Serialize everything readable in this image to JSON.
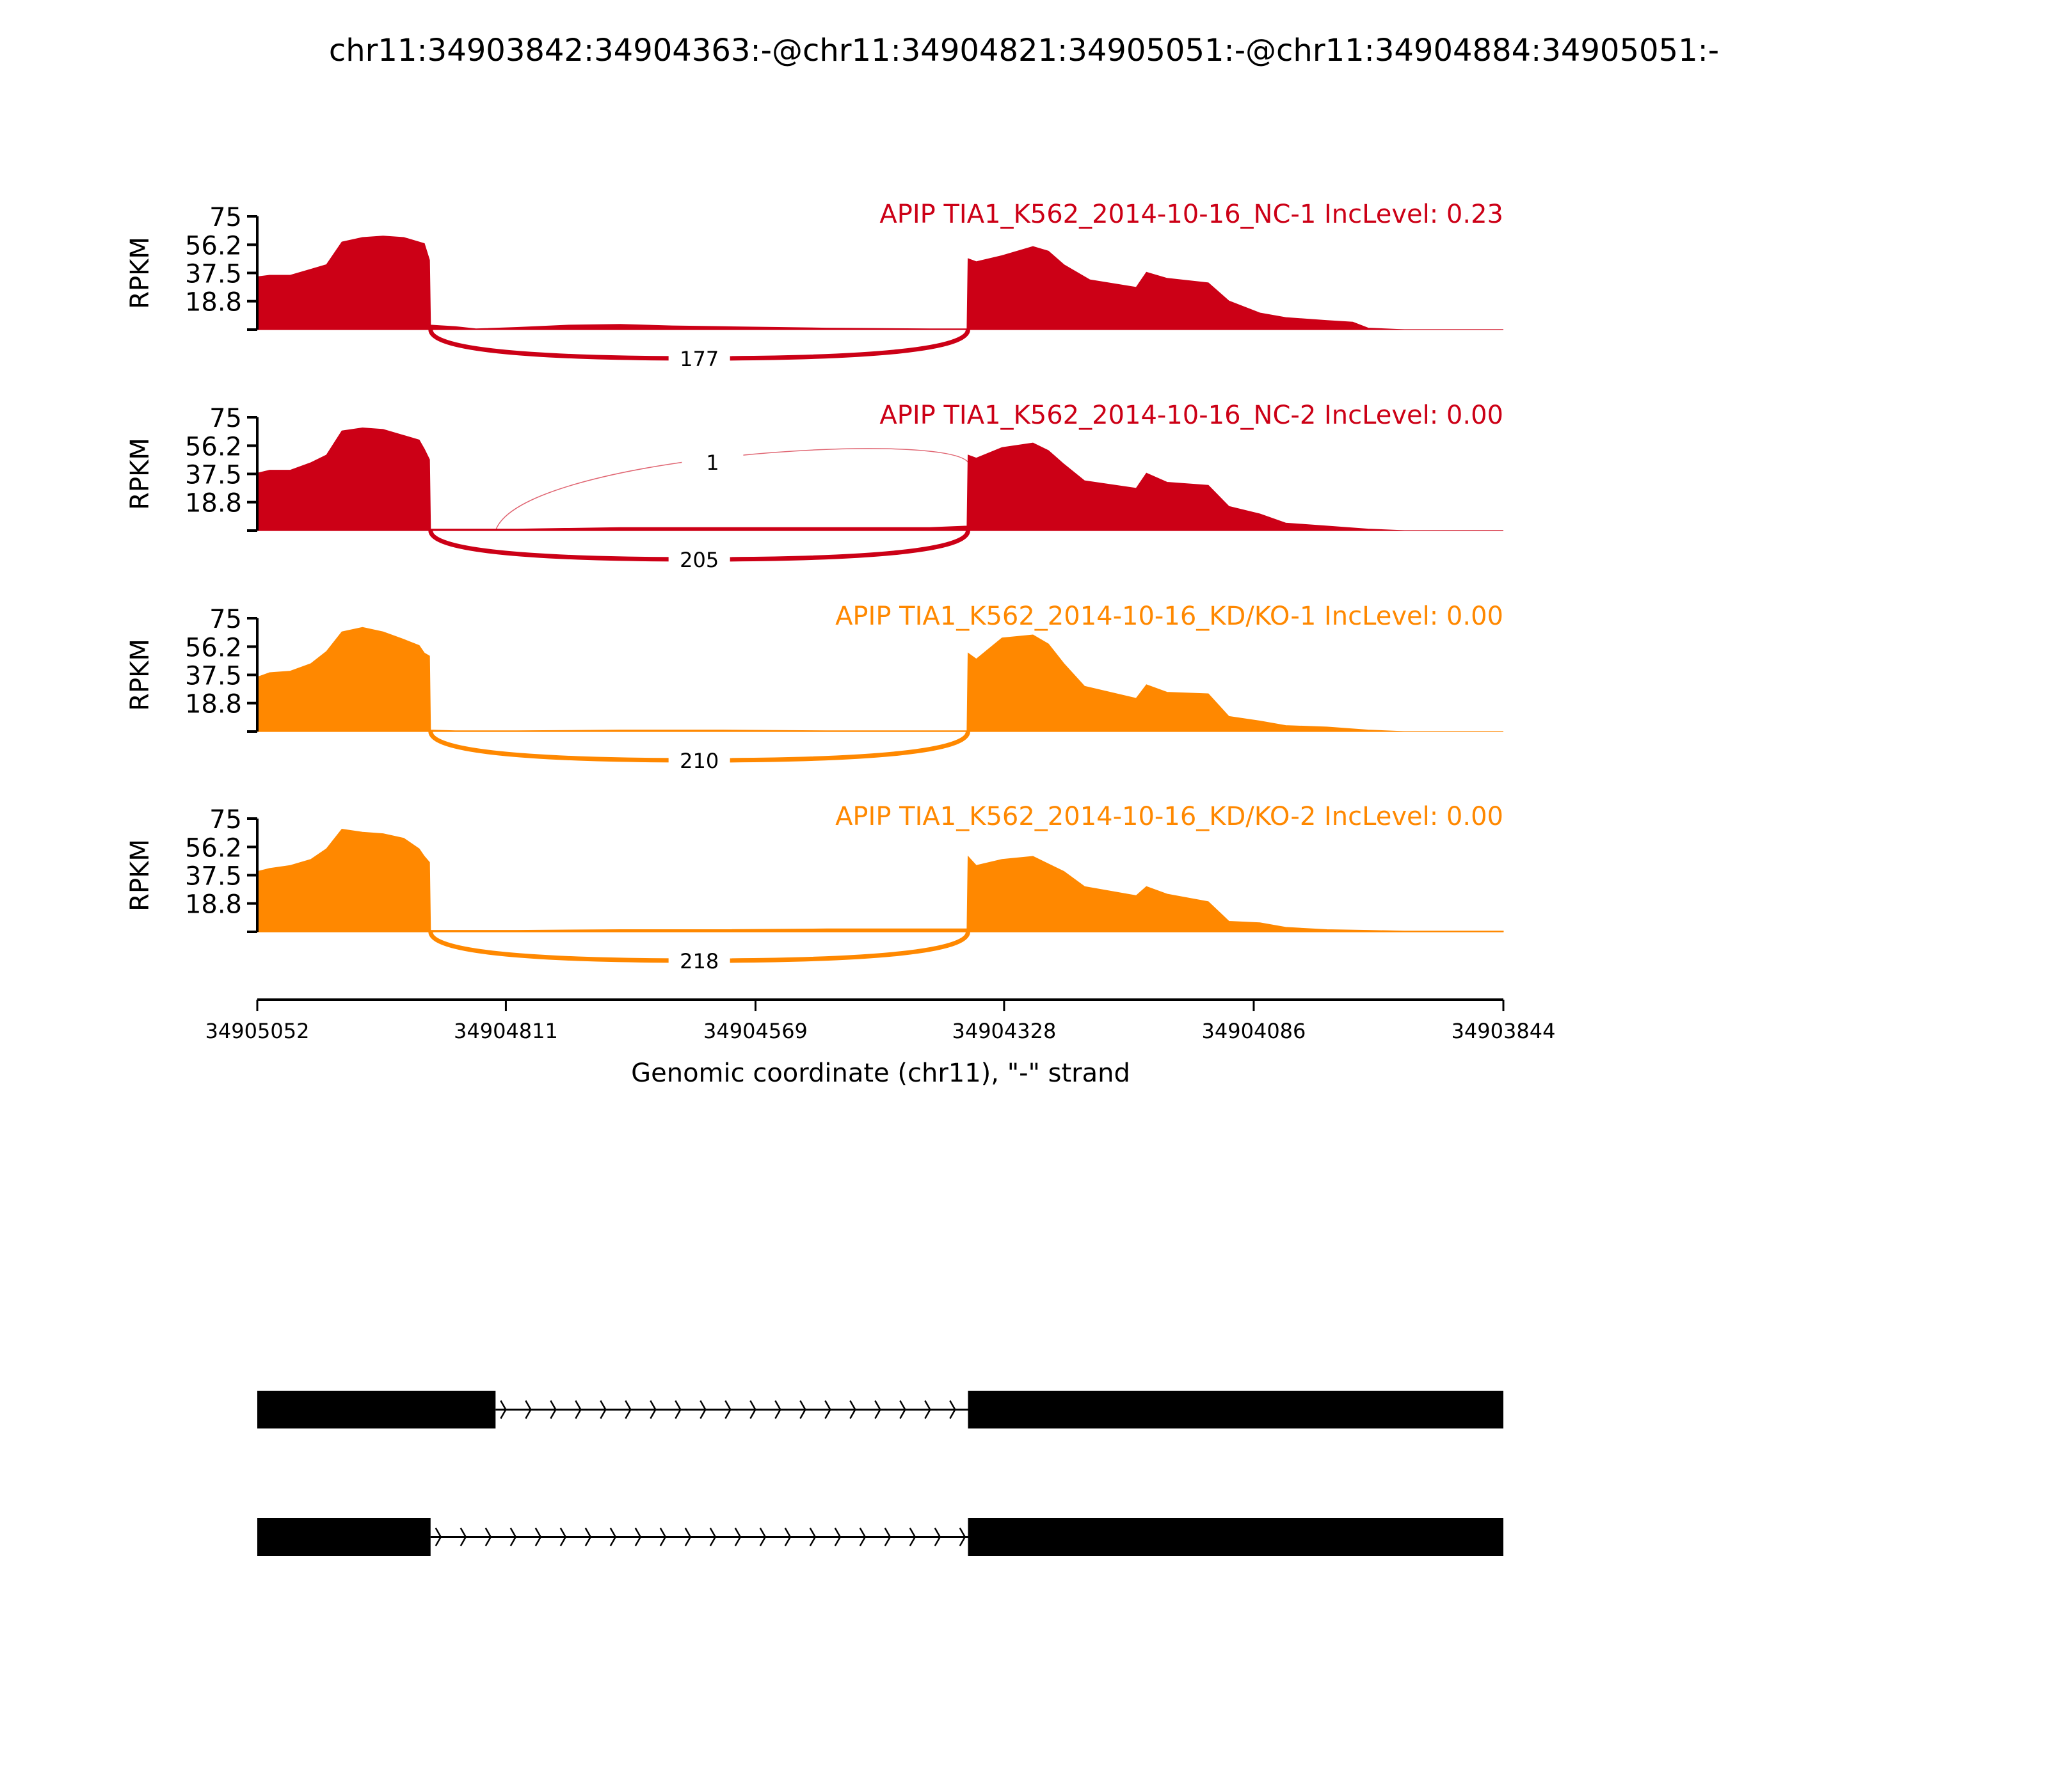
{
  "chart_data": {
    "type": "area",
    "title": "chr11:34903842:34904363:-@chr11:34904821:34905051:-@chr11:34904884:34905051:-",
    "xlabel": "Genomic coordinate (chr11), \"-\" strand",
    "ylabel": "RPKM",
    "xlim": [
      34905052,
      34903844
    ],
    "x_ticks": [
      "34905052",
      "34904811",
      "34904569",
      "34904328",
      "34904086",
      "34903844"
    ],
    "x_tick_values": [
      34905052,
      34904811,
      34904569,
      34904328,
      34904086,
      34903844
    ],
    "ylim": [
      0,
      75
    ],
    "y_ticks": [
      "75",
      "56.2",
      "37.5",
      "18.8"
    ],
    "y_tick_values": [
      75,
      56.2,
      37.5,
      18.8,
      0
    ],
    "series": [
      {
        "name": "APIP TIA1_K562_2014-10-16_NC-1 IncLevel: 0.23",
        "color": "#cc0016",
        "coverage": [
          [
            34905052,
            35
          ],
          [
            34905040,
            36
          ],
          [
            34905020,
            36
          ],
          [
            34905000,
            40
          ],
          [
            34904985,
            43
          ],
          [
            34904970,
            58
          ],
          [
            34904950,
            61
          ],
          [
            34904930,
            62
          ],
          [
            34904910,
            61
          ],
          [
            34904895,
            58
          ],
          [
            34904890,
            57
          ],
          [
            34904885,
            46
          ],
          [
            34904884,
            3
          ],
          [
            34904860,
            2
          ],
          [
            34904840,
            0.5
          ],
          [
            34904800,
            1.5
          ],
          [
            34904750,
            3
          ],
          [
            34904700,
            3.5
          ],
          [
            34904650,
            2.5
          ],
          [
            34904600,
            2
          ],
          [
            34904500,
            1
          ],
          [
            34904400,
            0.5
          ],
          [
            34904364,
            0.5
          ],
          [
            34904363,
            47
          ],
          [
            34904355,
            45
          ],
          [
            34904330,
            49
          ],
          [
            34904300,
            55
          ],
          [
            34904285,
            52
          ],
          [
            34904270,
            43
          ],
          [
            34904245,
            33
          ],
          [
            34904200,
            28
          ],
          [
            34904190,
            38
          ],
          [
            34904170,
            34
          ],
          [
            34904130,
            31
          ],
          [
            34904110,
            19
          ],
          [
            34904080,
            11
          ],
          [
            34904055,
            8
          ],
          [
            34904015,
            6
          ],
          [
            34903990,
            5
          ],
          [
            34903975,
            1
          ],
          [
            34903940,
            0
          ],
          [
            34903844,
            0
          ]
        ],
        "junctions": [
          {
            "start": 34904884,
            "end": 34904363,
            "count": "177",
            "side": "below"
          }
        ]
      },
      {
        "name": "APIP TIA1_K562_2014-10-16_NC-2 IncLevel: 0.00",
        "color": "#cc0016",
        "coverage": [
          [
            34905052,
            38
          ],
          [
            34905040,
            40
          ],
          [
            34905020,
            40
          ],
          [
            34905000,
            45
          ],
          [
            34904985,
            50
          ],
          [
            34904970,
            66
          ],
          [
            34904950,
            68
          ],
          [
            34904930,
            67
          ],
          [
            34904910,
            63
          ],
          [
            34904895,
            60
          ],
          [
            34904890,
            54
          ],
          [
            34904885,
            47
          ],
          [
            34904884,
            1
          ],
          [
            34904800,
            1
          ],
          [
            34904700,
            2
          ],
          [
            34904600,
            2
          ],
          [
            34904500,
            2
          ],
          [
            34904400,
            2
          ],
          [
            34904364,
            3
          ],
          [
            34904363,
            50
          ],
          [
            34904355,
            48
          ],
          [
            34904330,
            55
          ],
          [
            34904300,
            58
          ],
          [
            34904285,
            53
          ],
          [
            34904270,
            44
          ],
          [
            34904250,
            33
          ],
          [
            34904200,
            28
          ],
          [
            34904190,
            38
          ],
          [
            34904170,
            32
          ],
          [
            34904130,
            30
          ],
          [
            34904110,
            16
          ],
          [
            34904080,
            11
          ],
          [
            34904055,
            5
          ],
          [
            34904015,
            3
          ],
          [
            34903975,
            1
          ],
          [
            34903940,
            0
          ],
          [
            34903844,
            0
          ]
        ],
        "junctions": [
          {
            "start": 34904884,
            "end": 34904363,
            "count": "205",
            "side": "below"
          },
          {
            "start": 34904821,
            "end": 34904363,
            "count": "1",
            "side": "above"
          }
        ]
      },
      {
        "name": "APIP TIA1_K562_2014-10-16_KD/KO-1 IncLevel: 0.00",
        "color": "#ff8800",
        "coverage": [
          [
            34905052,
            36
          ],
          [
            34905040,
            39
          ],
          [
            34905020,
            40
          ],
          [
            34905000,
            45
          ],
          [
            34904985,
            53
          ],
          [
            34904970,
            66
          ],
          [
            34904950,
            69
          ],
          [
            34904930,
            66
          ],
          [
            34904910,
            61
          ],
          [
            34904895,
            57
          ],
          [
            34904890,
            52
          ],
          [
            34904885,
            50
          ],
          [
            34904884,
            1
          ],
          [
            34904860,
            0.5
          ],
          [
            34904800,
            0.5
          ],
          [
            34904700,
            1
          ],
          [
            34904600,
            1
          ],
          [
            34904500,
            0.5
          ],
          [
            34904364,
            0.5
          ],
          [
            34904363,
            52
          ],
          [
            34904355,
            48
          ],
          [
            34904330,
            62
          ],
          [
            34904300,
            64
          ],
          [
            34904285,
            58
          ],
          [
            34904270,
            45
          ],
          [
            34904250,
            30
          ],
          [
            34904200,
            22
          ],
          [
            34904190,
            31
          ],
          [
            34904170,
            26
          ],
          [
            34904130,
            25
          ],
          [
            34904110,
            10
          ],
          [
            34904080,
            7
          ],
          [
            34904055,
            4
          ],
          [
            34904015,
            3
          ],
          [
            34903975,
            1
          ],
          [
            34903940,
            0
          ],
          [
            34903844,
            0
          ]
        ],
        "junctions": [
          {
            "start": 34904884,
            "end": 34904363,
            "count": "210",
            "side": "below"
          }
        ]
      },
      {
        "name": "APIP TIA1_K562_2014-10-16_KD/KO-2 IncLevel: 0.00",
        "color": "#ff8800",
        "coverage": [
          [
            34905052,
            40
          ],
          [
            34905040,
            42
          ],
          [
            34905020,
            44
          ],
          [
            34905000,
            48
          ],
          [
            34904985,
            55
          ],
          [
            34904970,
            68
          ],
          [
            34904950,
            66
          ],
          [
            34904930,
            65
          ],
          [
            34904910,
            62
          ],
          [
            34904895,
            55
          ],
          [
            34904890,
            50
          ],
          [
            34904885,
            46
          ],
          [
            34904884,
            1
          ],
          [
            34904800,
            1
          ],
          [
            34904700,
            1.5
          ],
          [
            34904600,
            1.5
          ],
          [
            34904500,
            2
          ],
          [
            34904400,
            2
          ],
          [
            34904364,
            2
          ],
          [
            34904363,
            50
          ],
          [
            34904355,
            44
          ],
          [
            34904330,
            48
          ],
          [
            34904300,
            50
          ],
          [
            34904285,
            45
          ],
          [
            34904270,
            40
          ],
          [
            34904250,
            30
          ],
          [
            34904200,
            24
          ],
          [
            34904190,
            30
          ],
          [
            34904170,
            25
          ],
          [
            34904130,
            20
          ],
          [
            34904110,
            7
          ],
          [
            34904080,
            6
          ],
          [
            34904055,
            3
          ],
          [
            34904015,
            1.5
          ],
          [
            34903975,
            1
          ],
          [
            34903940,
            0.5
          ],
          [
            34903844,
            0.5
          ]
        ],
        "junctions": [
          {
            "start": 34904884,
            "end": 34904363,
            "count": "218",
            "side": "below"
          }
        ]
      }
    ],
    "transcripts": [
      {
        "exons": [
          [
            34905052,
            34904821
          ],
          [
            34904363,
            34903844
          ]
        ]
      },
      {
        "exons": [
          [
            34905052,
            34904884
          ],
          [
            34904363,
            34903844
          ]
        ]
      }
    ]
  }
}
